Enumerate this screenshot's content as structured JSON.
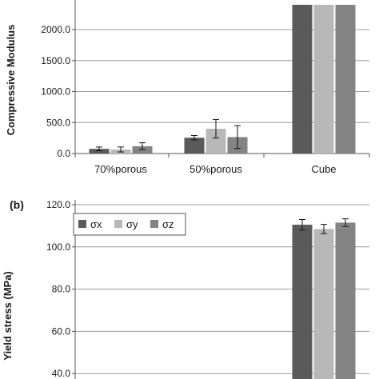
{
  "chart_data": [
    {
      "type": "bar",
      "panel_label": "",
      "ylabel": "Compressive Modulus",
      "categories": [
        "70%porous",
        "50%porous",
        "Cube"
      ],
      "ylim": [
        0,
        2400
      ],
      "yticks": [
        "0.0",
        "500.0",
        "1000.0",
        "1500.0",
        "2000.0"
      ],
      "grid": true,
      "legend": "",
      "colors": [
        "#5a5a5a",
        "#b8b8b8",
        "#838383"
      ],
      "series": [
        {
          "values": [
            75,
            255,
            2400
          ],
          "errors": [
            30,
            35,
            null
          ]
        },
        {
          "values": [
            65,
            400,
            2400
          ],
          "errors": [
            40,
            150,
            null
          ]
        },
        {
          "values": [
            118,
            265,
            2400
          ],
          "errors": [
            55,
            185,
            null
          ]
        }
      ]
    },
    {
      "type": "bar",
      "panel_label": "(b)",
      "ylabel": "Yield stress (MPa)",
      "categories": [
        "70%porous",
        "50%porous",
        "Cube"
      ],
      "ylim": [
        20,
        120
      ],
      "yticks": [
        "40.0",
        "60.0",
        "80.0",
        "100.0",
        "120.0"
      ],
      "grid": true,
      "legend": "top-left",
      "colors": [
        "#5a5a5a",
        "#b8b8b8",
        "#838383"
      ],
      "series": [
        {
          "name": "σx",
          "values": [
            null,
            null,
            110.5
          ],
          "errors": [
            null,
            null,
            2.5
          ]
        },
        {
          "name": "σy",
          "values": [
            null,
            null,
            108.5
          ],
          "errors": [
            null,
            null,
            2.2
          ]
        },
        {
          "name": "σz",
          "values": [
            null,
            null,
            111.5
          ],
          "errors": [
            null,
            null,
            1.8
          ]
        }
      ]
    }
  ]
}
